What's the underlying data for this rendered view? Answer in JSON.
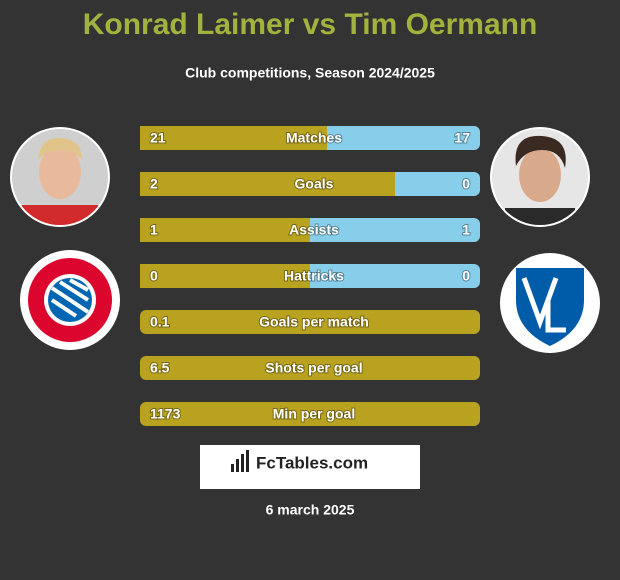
{
  "header": {
    "title": "Konrad Laimer vs Tim Oermann",
    "subtitle": "Club competitions, Season 2024/2025"
  },
  "stats": [
    {
      "label": "Matches",
      "left": 21,
      "right": 17
    },
    {
      "label": "Goals",
      "left": 2,
      "right": 0
    },
    {
      "label": "Assists",
      "left": 1,
      "right": 1
    },
    {
      "label": "Hattricks",
      "left": 0,
      "right": 0
    },
    {
      "label": "Goals per match",
      "left": 0.1
    },
    {
      "label": "Shots per goal",
      "left": 6.5
    },
    {
      "label": "Min per goal",
      "left": 1173
    }
  ],
  "footer": {
    "brand": "FcTables.com",
    "date": "6 march 2025"
  }
}
